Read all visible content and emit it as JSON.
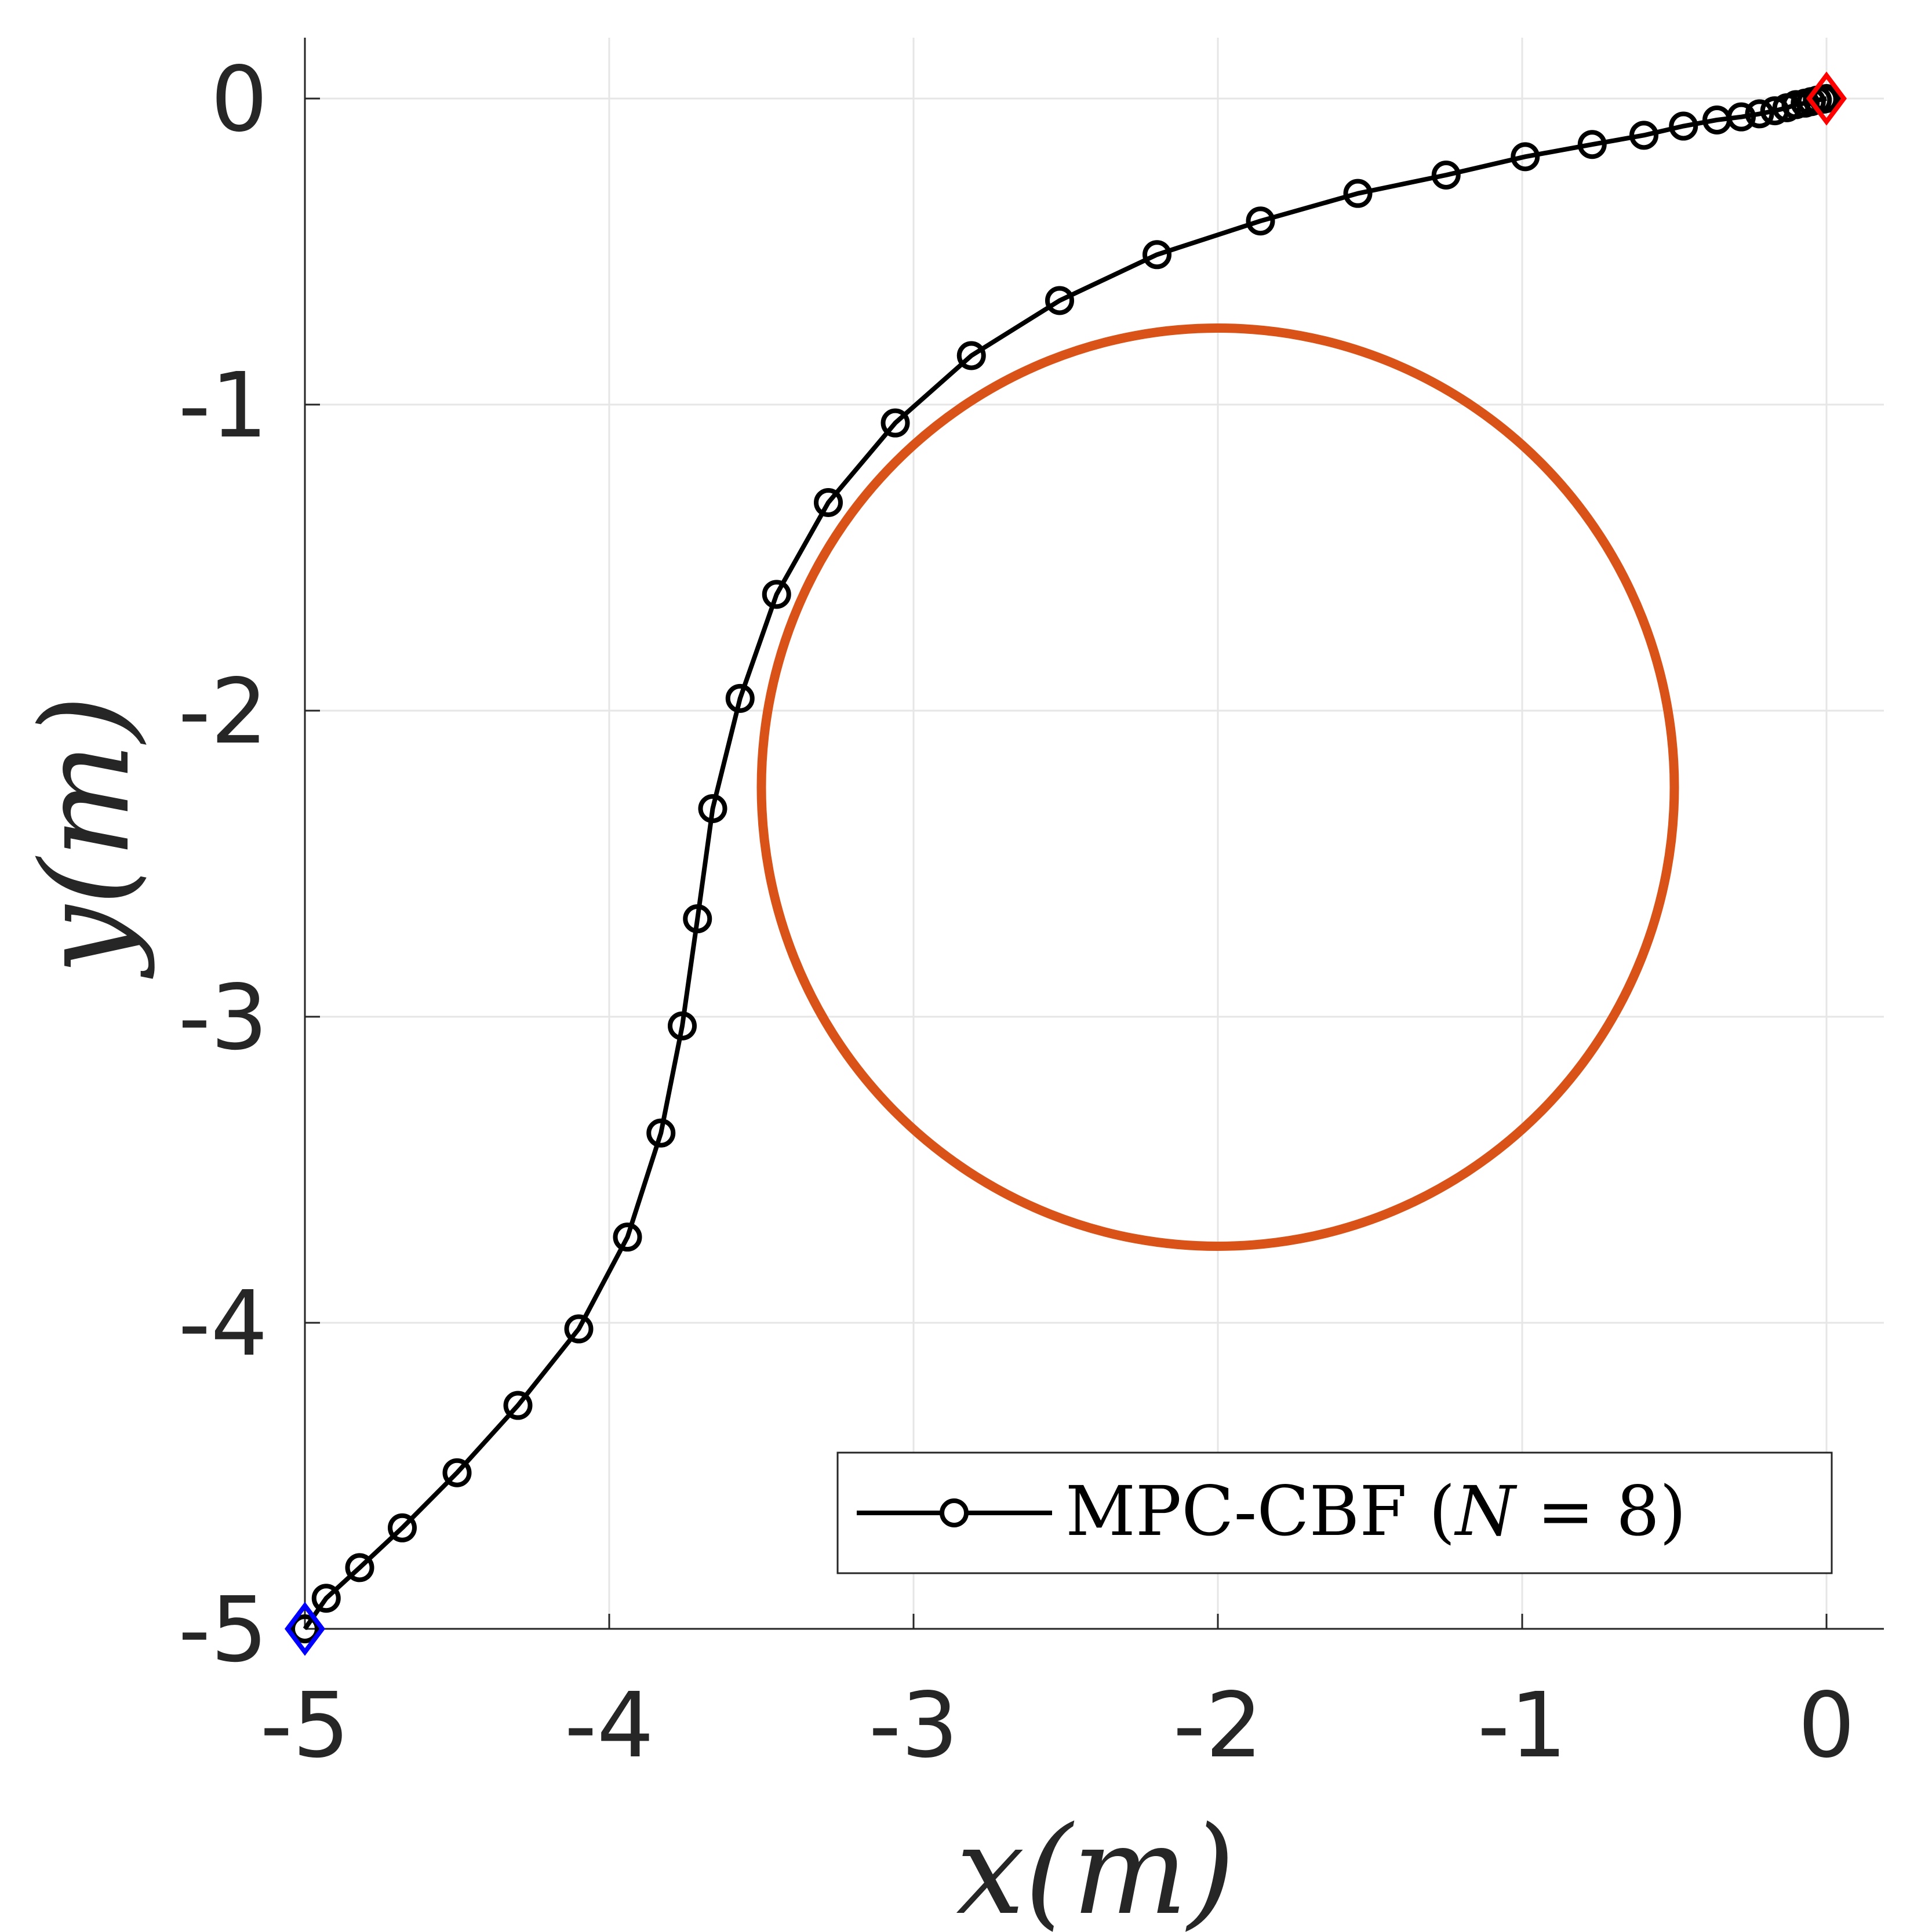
{
  "chart_data": {
    "type": "scatter",
    "title": "",
    "xlabel": "x(m)",
    "ylabel": "y(m)",
    "xlim": [
      -5,
      0.2
    ],
    "ylim": [
      -5,
      0.2
    ],
    "grid": true,
    "x_ticks": [
      -5,
      -4,
      -3,
      -2,
      -1,
      0
    ],
    "y_ticks": [
      -5,
      -4,
      -3,
      -2,
      -1,
      0
    ],
    "x_tick_labels": [
      "-5",
      "-4",
      "-3",
      "-2",
      "-1",
      "0"
    ],
    "y_tick_labels": [
      "-5",
      "-4",
      "-3",
      "-2",
      "-1",
      "0"
    ],
    "legend": {
      "placement": "bottom-right",
      "entries": [
        {
          "label_main": "MPC-CBF ",
          "label_math_open": "(",
          "label_math_var": "N",
          "label_math_rest": " = 8)"
        }
      ]
    },
    "series": [
      {
        "name": "MPC-CBF (N = 8)",
        "color": "#000000",
        "marker": "circle",
        "x": [
          -5.0,
          -4.93,
          -4.82,
          -4.68,
          -4.5,
          -4.3,
          -4.1,
          -3.94,
          -3.83,
          -3.76,
          -3.71,
          -3.66,
          -3.57,
          -3.45,
          -3.28,
          -3.06,
          -2.81,
          -2.52,
          -2.2,
          -1.86,
          -1.54,
          -1.25,
          -0.99,
          -0.77,
          -0.6,
          -0.47,
          -0.36,
          -0.28,
          -0.22,
          -0.17,
          -0.13,
          -0.1,
          -0.07,
          -0.05,
          -0.03,
          -0.01,
          0.0
        ],
        "y": [
          -5.0,
          -4.9,
          -4.8,
          -4.67,
          -4.49,
          -4.27,
          -4.02,
          -3.72,
          -3.38,
          -3.03,
          -2.68,
          -2.32,
          -1.96,
          -1.62,
          -1.32,
          -1.06,
          -0.84,
          -0.66,
          -0.51,
          -0.4,
          -0.31,
          -0.25,
          -0.19,
          -0.15,
          -0.12,
          -0.09,
          -0.07,
          -0.06,
          -0.05,
          -0.04,
          -0.03,
          -0.02,
          -0.015,
          -0.01,
          -0.005,
          -0.002,
          0.0
        ]
      }
    ],
    "obstacle": {
      "name": "obstacle",
      "center": [
        -2.0,
        -2.25
      ],
      "radius": 1.5,
      "color": "#D95319"
    },
    "start_marker": {
      "x": -5.0,
      "y": -5.0,
      "color": "#0000FF",
      "shape": "diamond"
    },
    "goal_marker": {
      "x": 0.0,
      "y": 0.0,
      "color": "#FF0000",
      "shape": "diamond"
    },
    "grid_color": "#E6E6E6",
    "axis_color": "#262626"
  }
}
